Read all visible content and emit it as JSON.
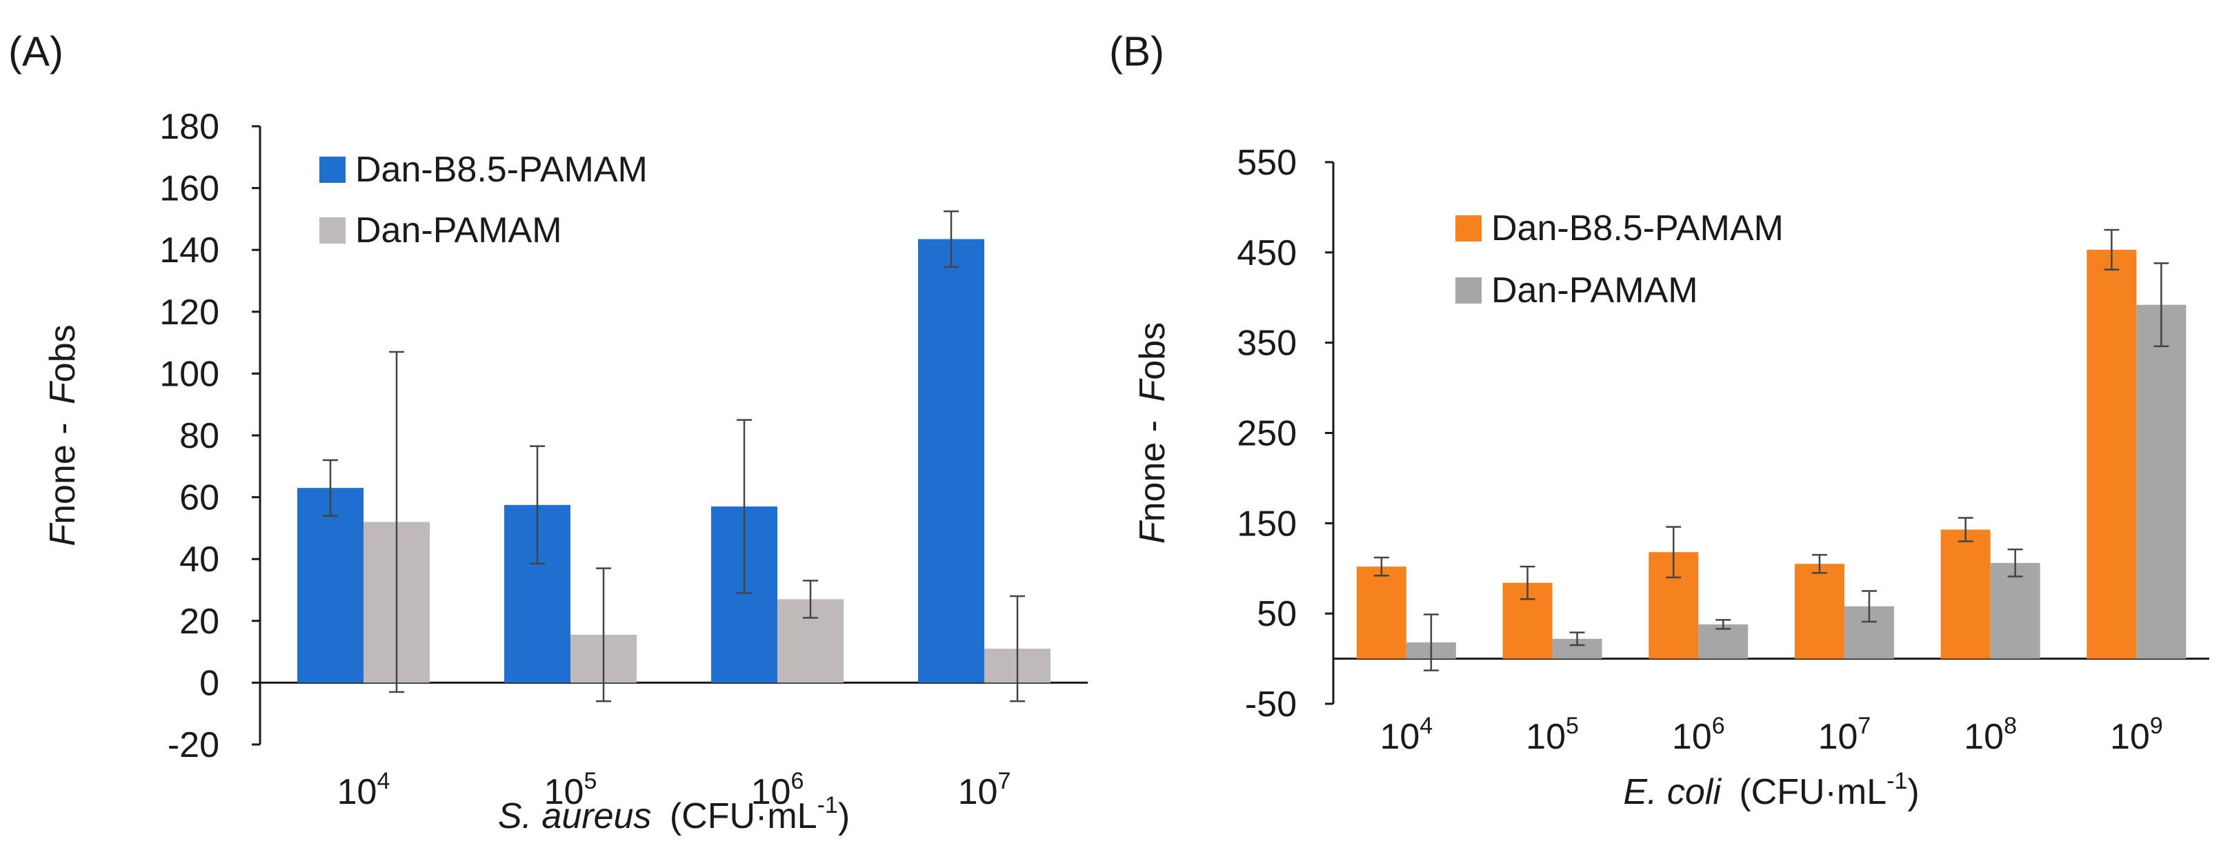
{
  "chart_data": [
    {
      "type": "bar",
      "panel_label": "(A)",
      "xlabel_italic": "S. aureus",
      "xlabel_rest": "(CFU·mL",
      "xlabel_sup": "-1",
      "xlabel_close": ")",
      "ylabel": {
        "p1": "F",
        "p2": "none - ",
        "p3": "F",
        "p4": "obs"
      },
      "ylim": [
        -20,
        180
      ],
      "yticks": [
        "-20",
        "0",
        "20",
        "40",
        "60",
        "80",
        "100",
        "120",
        "140",
        "160",
        "180"
      ],
      "categories": [
        {
          "base": "10",
          "exp": "4"
        },
        {
          "base": "10",
          "exp": "5"
        },
        {
          "base": "10",
          "exp": "6"
        },
        {
          "base": "10",
          "exp": "7"
        }
      ],
      "legend_position": "top-left",
      "series": [
        {
          "name": "Dan-B8.5-PAMAM",
          "color": "#1f6fd1",
          "values": [
            63,
            57.5,
            57,
            143.5
          ],
          "errors": [
            9,
            19,
            28,
            9
          ]
        },
        {
          "name": "Dan-PAMAM",
          "color": "#bfb9b9",
          "values": [
            52,
            15.5,
            27,
            11
          ],
          "errors": [
            55,
            21.5,
            6,
            17
          ]
        }
      ]
    },
    {
      "type": "bar",
      "panel_label": "(B)",
      "xlabel_italic": "E. coli",
      "xlabel_rest": "(CFU·mL",
      "xlabel_sup": "-1",
      "xlabel_close": ")",
      "ylabel": {
        "p1": "F",
        "p2": "none - ",
        "p3": "F",
        "p4": "obs"
      },
      "ylim": [
        -50,
        550
      ],
      "yticks": [
        "-50",
        "50",
        "150",
        "250",
        "350",
        "450",
        "550"
      ],
      "categories": [
        {
          "base": "10",
          "exp": "4"
        },
        {
          "base": "10",
          "exp": "5"
        },
        {
          "base": "10",
          "exp": "6"
        },
        {
          "base": "10",
          "exp": "7"
        },
        {
          "base": "10",
          "exp": "8"
        },
        {
          "base": "10",
          "exp": "9"
        }
      ],
      "legend_position": "top-left",
      "series": [
        {
          "name": "Dan-B8.5-PAMAM",
          "color": "#f5821f",
          "values": [
            102,
            84,
            118,
            105,
            143,
            453
          ],
          "errors": [
            10,
            18,
            28,
            10,
            13,
            22
          ]
        },
        {
          "name": "Dan-PAMAM",
          "color": "#a6a6a6",
          "values": [
            18,
            22,
            38,
            58,
            106,
            392
          ],
          "errors": [
            31,
            7,
            5,
            17,
            15,
            46
          ]
        }
      ]
    }
  ]
}
